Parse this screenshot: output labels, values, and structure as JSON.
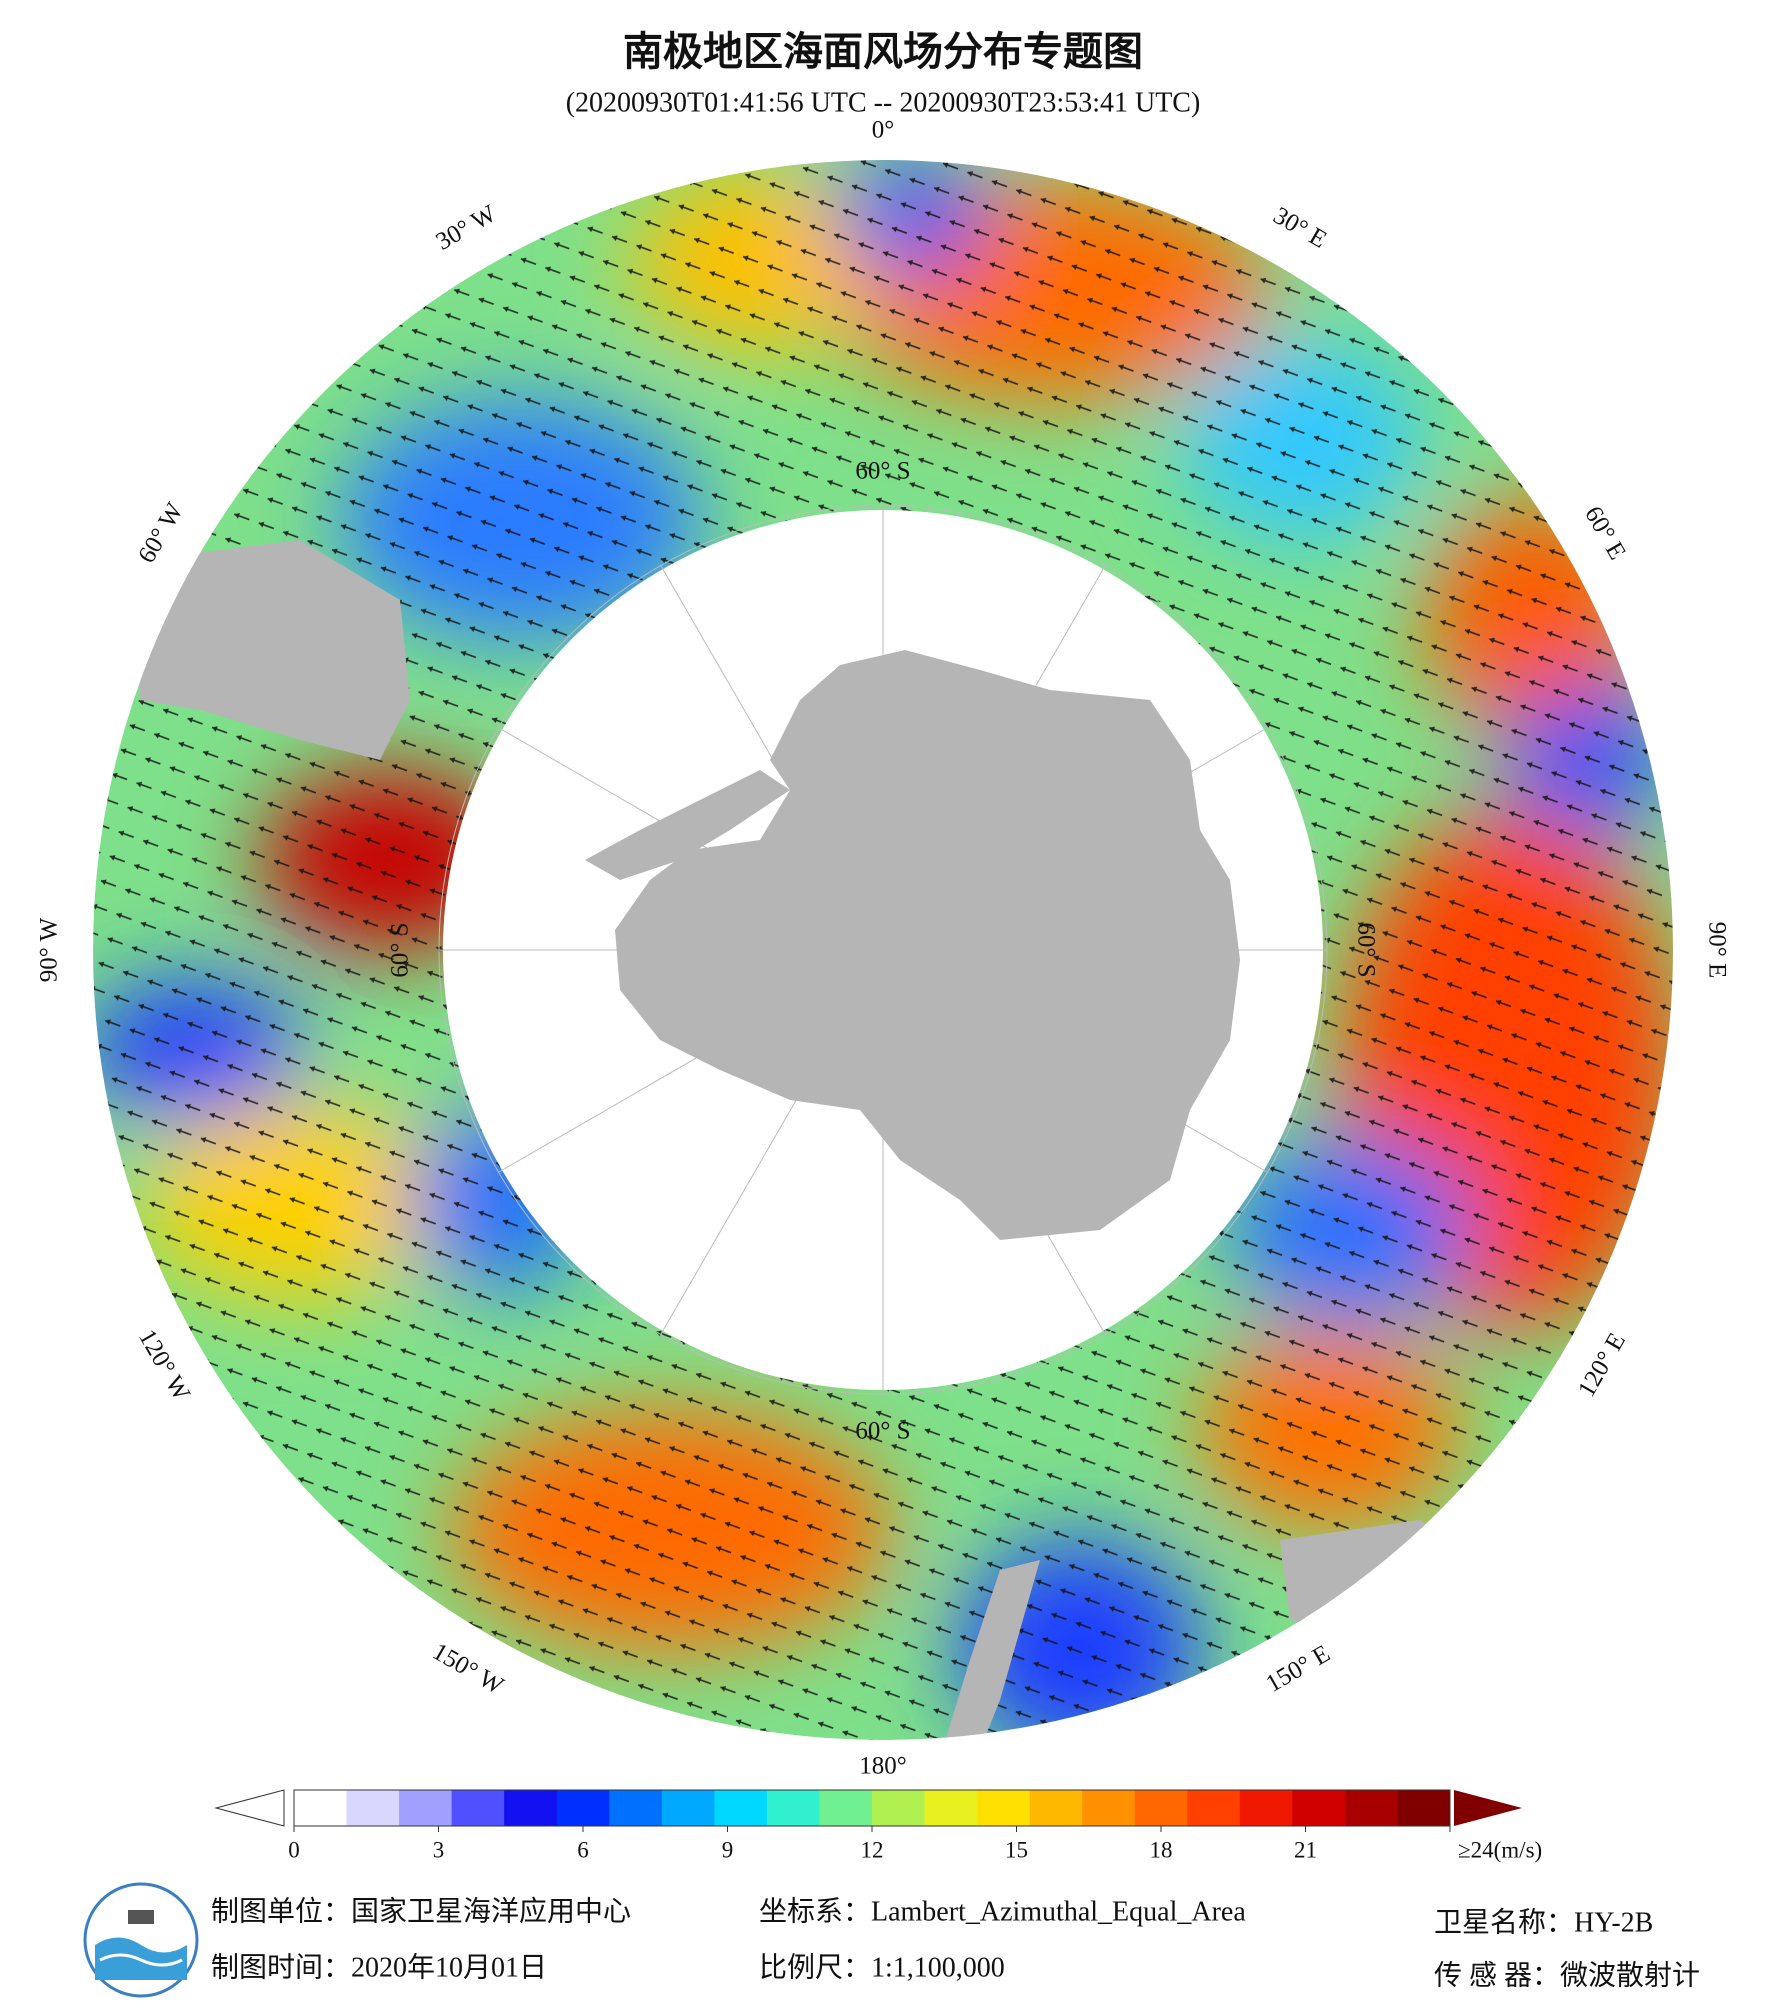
{
  "header": {
    "title": "南极地区海面风场分布专题图",
    "subtitle": "(20200930T01:41:56 UTC -- 20200930T23:53:41 UTC)"
  },
  "map": {
    "longitude_labels": [
      "0°",
      "30° E",
      "60° E",
      "90° E",
      "120° E",
      "150° E",
      "180°",
      "150° W",
      "120° W",
      "90° W",
      "60° W",
      "30° W"
    ],
    "latitude_label": "60° S"
  },
  "colorbar": {
    "min": 0,
    "max": 24,
    "ticks": [
      0,
      3,
      6,
      9,
      12,
      15,
      18,
      21,
      {
        "value": 24,
        "label": "≥24(m/s)"
      }
    ],
    "colors": [
      "#ffffff",
      "#d8d8ff",
      "#a0a0ff",
      "#5050ff",
      "#1010f0",
      "#0030ff",
      "#0070ff",
      "#00a8ff",
      "#00d8ff",
      "#30f0d0",
      "#70f090",
      "#b0f050",
      "#e8f020",
      "#ffe000",
      "#ffb800",
      "#ff9000",
      "#ff6800",
      "#ff4000",
      "#f01800",
      "#d00000",
      "#a80000",
      "#800000"
    ],
    "over_color": "#800000"
  },
  "footer": {
    "unit": "制图单位：国家卫星海洋应用中心",
    "date": "制图时间：2020年10月01日",
    "crs": "坐标系：Lambert_Azimuthal_Equal_Area",
    "scale": "比例尺：1:1,100,000",
    "satellite": "卫星名称：HY-2B",
    "sensor": "传 感 器：微波散射计"
  }
}
